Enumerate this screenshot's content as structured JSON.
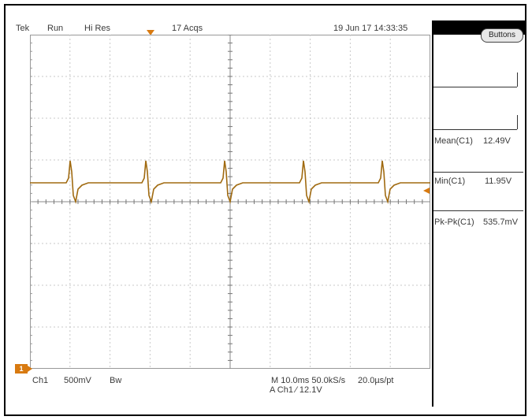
{
  "status_bar": {
    "brand": "Tek",
    "run_state": "Run",
    "acq_mode": "Hi Res",
    "acq_count": "17 Acqs",
    "datetime": "19 Jun 17 14:33:35"
  },
  "side_panel": {
    "buttons_label": "Buttons",
    "measurements": [
      {
        "label": "Mean(C1)",
        "value": "12.49V"
      },
      {
        "label": "Min(C1)",
        "value": "11.95V"
      },
      {
        "label": "Pk-Pk(C1)",
        "value": "535.7mV"
      }
    ]
  },
  "bottom_bar": {
    "channel": "Ch1",
    "volts_div": "500mV",
    "bw": "Bw",
    "record": "M 10.0ms 50.0kS/s",
    "time_div": "20.0µs/pt",
    "trigger": "A  Ch1  ∕  12.1V"
  },
  "channel_marker": "1",
  "colors": {
    "trace": "#a06a10",
    "grid": "#c8c8c8",
    "marker": "#d87a10"
  }
}
